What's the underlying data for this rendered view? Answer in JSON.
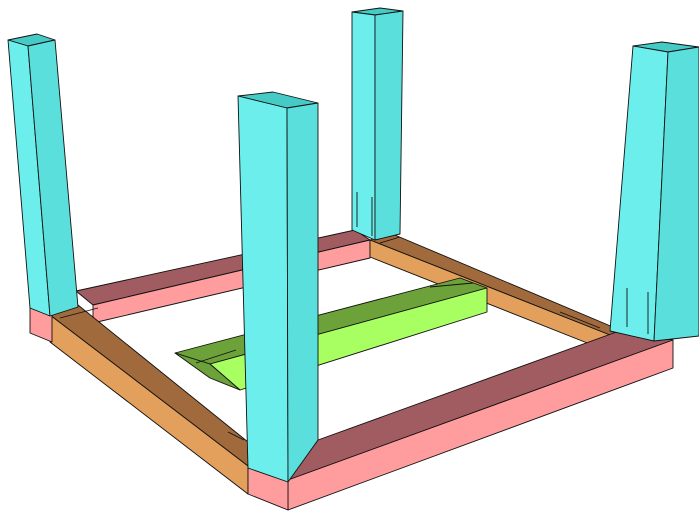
{
  "figure": {
    "kind": "3D wooden table frame (upside down)",
    "parts": {
      "legs": {
        "count": 4,
        "color": "cyan"
      },
      "long_aprons": {
        "count": 2,
        "color": "pink"
      },
      "short_aprons": {
        "count": 2,
        "color": "orange"
      },
      "center_stretcher": {
        "count": 1,
        "color": "green"
      }
    }
  },
  "colors": {
    "leg_top": "#45CAC6",
    "leg_left": "#6BEEEC",
    "leg_right": "#5BDFDC",
    "pink_top": "#A05C60",
    "pink_front": "#FF9C9E",
    "orange_top": "#A06A3C",
    "orange_front": "#E3A05C",
    "green_top": "#6DA23A",
    "green_front": "#A8FF62",
    "outline": "#111111"
  },
  "icons": {
    "pocket_hole_arrow": "arrow-down-icon"
  }
}
